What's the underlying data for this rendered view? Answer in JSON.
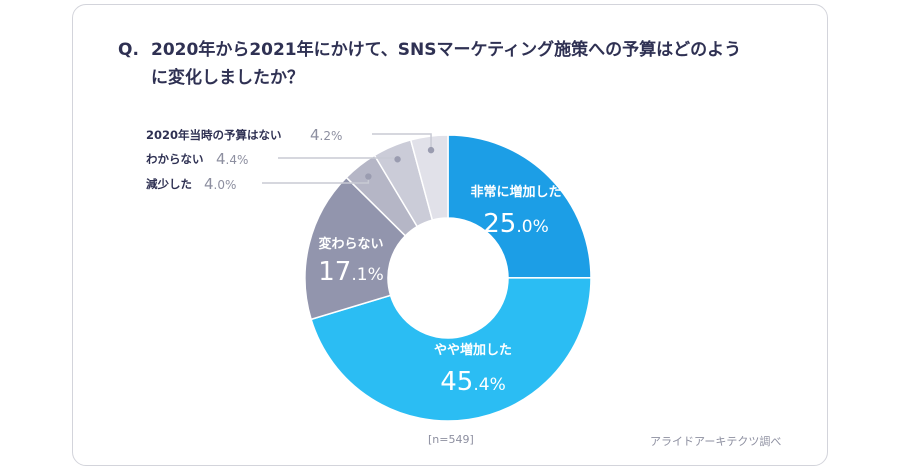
{
  "question": {
    "prefix": "Q.",
    "text": "2020年から2021年にかけて、SNSマーケティング施策への予算はどのように変化しましたか？"
  },
  "footer": {
    "sample": "[n=549]",
    "source": "アライドアーキテクツ調べ"
  },
  "colors": {
    "title": "#2f3153",
    "label_gray": "#8d8fa0",
    "leader": "#c8cad4"
  },
  "chart_data": {
    "type": "pie",
    "variant": "donut",
    "start": "12 o'clock",
    "direction": "clockwise",
    "unit": "%",
    "slices": [
      {
        "name": "非常に増加した",
        "value": 25.0,
        "value_label": "25.0",
        "color": "#1c9ee6",
        "label_position": "inside"
      },
      {
        "name": "やや増加した",
        "value": 45.4,
        "value_label": "45.4",
        "color": "#2bbdf3",
        "label_position": "inside"
      },
      {
        "name": "変わらない",
        "value": 17.1,
        "value_label": "17.1",
        "color": "#9295ad",
        "label_position": "inside"
      },
      {
        "name": "減少した",
        "value": 4.0,
        "value_label": "4.0",
        "color": "#b5b6c6",
        "label_position": "outside"
      },
      {
        "name": "わからない",
        "value": 4.4,
        "value_label": "4.4",
        "color": "#cbccd8",
        "label_position": "outside"
      },
      {
        "name": "2020年当時の予算はない",
        "value": 4.2,
        "value_label": "4.2",
        "color": "#e1e1e9",
        "label_position": "outside"
      }
    ]
  }
}
